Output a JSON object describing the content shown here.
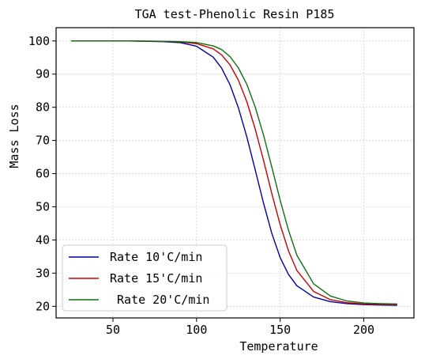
{
  "chart_data": {
    "type": "line",
    "title": "TGA test-Phenolic Resin P185",
    "xlabel": "Temperature",
    "ylabel": "Mass Loss",
    "xlim": [
      16,
      230
    ],
    "ylim": [
      16.5,
      104
    ],
    "xticks": [
      50,
      100,
      150,
      200
    ],
    "yticks": [
      20,
      30,
      40,
      50,
      60,
      70,
      80,
      90,
      100
    ],
    "grid": true,
    "legend_position": "lower-left",
    "series": [
      {
        "name": "Rate 10'C/min",
        "color": "#0000aa",
        "x": [
          25,
          40,
          60,
          80,
          90,
          100,
          110,
          115,
          120,
          125,
          130,
          135,
          140,
          145,
          150,
          155,
          160,
          170,
          180,
          190,
          200,
          210,
          220
        ],
        "y": [
          100,
          100,
          100,
          99.8,
          99.5,
          98.4,
          95.1,
          91.8,
          86.8,
          79.9,
          71.2,
          61.3,
          51.2,
          42.0,
          34.7,
          29.6,
          26.2,
          22.8,
          21.4,
          20.8,
          20.5,
          20.4,
          20.3
        ]
      },
      {
        "name": "Rate 15'C/min",
        "color": "#cc0000",
        "x": [
          25,
          40,
          60,
          80,
          90,
          100,
          110,
          115,
          120,
          125,
          130,
          135,
          140,
          145,
          150,
          155,
          160,
          170,
          180,
          190,
          200,
          210,
          220
        ],
        "y": [
          100,
          100,
          100,
          99.9,
          99.7,
          99.2,
          97.6,
          95.8,
          92.8,
          88.2,
          81.8,
          73.6,
          64.1,
          54.0,
          44.6,
          36.7,
          30.8,
          24.5,
          22.0,
          21.1,
          20.7,
          20.6,
          20.5
        ]
      },
      {
        "name": " Rate 20'C/min",
        "color": "#107010",
        "x": [
          25,
          40,
          60,
          80,
          90,
          100,
          110,
          115,
          120,
          125,
          130,
          135,
          140,
          145,
          150,
          155,
          160,
          170,
          180,
          190,
          200,
          210,
          220
        ],
        "y": [
          100,
          100,
          100,
          99.9,
          99.8,
          99.5,
          98.5,
          97.4,
          95.3,
          91.9,
          87.0,
          80.2,
          71.7,
          62.0,
          52.0,
          42.9,
          35.4,
          26.8,
          23.1,
          21.6,
          21.0,
          20.8,
          20.7
        ]
      }
    ]
  }
}
